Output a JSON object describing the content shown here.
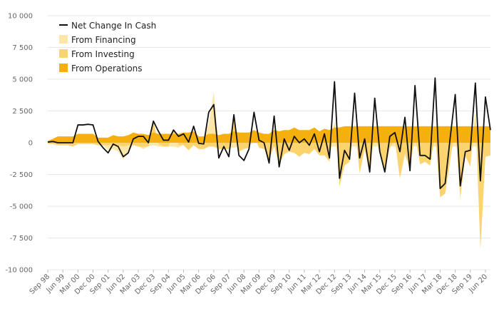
{
  "chart_data": {
    "type": "area",
    "title": "",
    "xlabel": "",
    "ylabel": "",
    "ylim": [
      -10000,
      10000
    ],
    "yticks": [
      10000,
      7500,
      5000,
      2500,
      0,
      -2500,
      -5000,
      -7500,
      -10000
    ],
    "ytick_labels": [
      "10 000",
      "7 500",
      "5 000",
      "2 500",
      "0",
      "-2 500",
      "-5 000",
      "-7 500",
      "-10 000"
    ],
    "grid": true,
    "legend_position": "top-left",
    "colors": {
      "net": "#111111",
      "financing": "#FCE6A8",
      "investing": "#FBD46F",
      "operations": "#F5AF0F",
      "grid": "#E8E8E8",
      "zero_line": "#CCCCCC"
    },
    "x": [
      "Sep 98",
      "Dec 98",
      "Mar 99",
      "Jun 99",
      "Sep 99",
      "Dec 99",
      "Mar 00",
      "Jun 00",
      "Sep 00",
      "Dec 00",
      "Mar 01",
      "Jun 01",
      "Sep 01",
      "Dec 01",
      "Mar 02",
      "Jun 02",
      "Sep 02",
      "Dec 02",
      "Mar 03",
      "Jun 03",
      "Sep 03",
      "Dec 03",
      "Mar 04",
      "Jun 04",
      "Sep 04",
      "Dec 04",
      "Mar 05",
      "Jun 05",
      "Sep 05",
      "Dec 05",
      "Mar 06",
      "Jun 06",
      "Sep 06",
      "Dec 06",
      "Mar 07",
      "Jun 07",
      "Sep 07",
      "Dec 07",
      "Mar 08",
      "Jun 08",
      "Sep 08",
      "Dec 08",
      "Mar 09",
      "Jun 09",
      "Sep 09",
      "Dec 09",
      "Mar 10",
      "Jun 10",
      "Sep 10",
      "Dec 10",
      "Mar 11",
      "Jun 11",
      "Sep 11",
      "Dec 11",
      "Mar 12",
      "Jun 12",
      "Sep 12",
      "Dec 12",
      "Mar 13",
      "Jun 13",
      "Sep 13",
      "Dec 13",
      "Mar 14",
      "Jun 14",
      "Sep 14",
      "Dec 14",
      "Mar 15",
      "Jun 15",
      "Sep 15",
      "Dec 15",
      "Mar 16",
      "Jun 16",
      "Sep 16",
      "Dec 16",
      "Mar 17",
      "Jun 17",
      "Sep 17",
      "Dec 17",
      "Mar 18",
      "Jun 18",
      "Sep 18",
      "Dec 18",
      "Mar 19",
      "Jun 19",
      "Sep 19",
      "Dec 19",
      "Mar 20",
      "Jun 20",
      "Sep 20"
    ],
    "x_tick_labels": [
      "Sep 98",
      "Jun 99",
      "Mar 00",
      "Dec 00",
      "Sep 01",
      "Jun 02",
      "Mar 03",
      "Dec 03",
      "Sep 04",
      "Jun 05",
      "Mar 06",
      "Dec 06",
      "Sep 07",
      "Jun 08",
      "Mar 09",
      "Dec 09",
      "Sep 10",
      "Jun 11",
      "Mar 12",
      "Dec 12",
      "Sep 13",
      "Jun 14",
      "Mar 15",
      "Dec 15",
      "Sep 16",
      "Jun 17",
      "Mar 18",
      "Dec 18",
      "Sep 19",
      "Jun 20"
    ],
    "series": [
      {
        "name": "Net Change In Cash",
        "kind": "line",
        "values": [
          50,
          100,
          0,
          0,
          0,
          0,
          1400,
          1400,
          1450,
          1400,
          100,
          -400,
          -800,
          -100,
          -300,
          -1100,
          -800,
          300,
          500,
          500,
          0,
          1700,
          900,
          200,
          200,
          1000,
          500,
          700,
          50,
          1300,
          -50,
          -100,
          2400,
          3000,
          -1200,
          -300,
          -1100,
          2200,
          -1000,
          -1400,
          -500,
          2400,
          200,
          0,
          -1600,
          2100,
          -1900,
          300,
          -600,
          500,
          0,
          300,
          -200,
          700,
          -700,
          700,
          -1200,
          4800,
          -2800,
          -600,
          -1300,
          3900,
          -1200,
          300,
          -2300,
          3500,
          -700,
          -2300,
          500,
          800,
          -700,
          2000,
          -2200,
          4500,
          -1000,
          -1000,
          -1300,
          5100,
          -3600,
          -3200,
          400,
          3800,
          -3400,
          -700,
          -600,
          4700,
          -3000,
          3600,
          1000
        ]
      },
      {
        "name": "From Financing",
        "kind": "area",
        "values": [
          0,
          0,
          0,
          0,
          0,
          0,
          -100,
          -100,
          -100,
          -100,
          -100,
          -200,
          -600,
          -500,
          -700,
          -1300,
          -800,
          -100,
          -300,
          -500,
          -300,
          -200,
          -300,
          -300,
          -300,
          -300,
          -400,
          -100,
          -200,
          300,
          200,
          300,
          1500,
          4000,
          -300,
          -200,
          -400,
          -400,
          -300,
          -300,
          -300,
          100,
          -100,
          -200,
          -700,
          -200,
          -800,
          -300,
          -200,
          -300,
          -200,
          -200,
          -200,
          -300,
          -300,
          -300,
          -300,
          -300,
          -300,
          -300,
          -300,
          -300,
          -300,
          -300,
          -300,
          -300,
          -300,
          -300,
          -300,
          -300,
          -300,
          -300,
          -300,
          -300,
          -300,
          -300,
          -300,
          -300,
          -300,
          -300,
          -300,
          -300,
          -300,
          -300,
          -300,
          -300,
          -300,
          -300,
          -300
        ]
      },
      {
        "name": "From Investing",
        "kind": "area",
        "values": [
          -100,
          -100,
          -200,
          -200,
          -200,
          -300,
          -100,
          -100,
          -100,
          -100,
          -200,
          -200,
          -200,
          -100,
          -200,
          -300,
          -200,
          -200,
          -300,
          -300,
          -300,
          1700,
          -100,
          -300,
          -300,
          1100,
          -200,
          -200,
          -600,
          -200,
          -500,
          -500,
          -300,
          -300,
          -500,
          -500,
          -500,
          2400,
          -700,
          -500,
          -400,
          600,
          -400,
          -500,
          -1300,
          -300,
          -1700,
          -900,
          -700,
          -800,
          -1100,
          -800,
          -900,
          -500,
          -1000,
          -1000,
          -1500,
          1700,
          -3400,
          -1800,
          -1500,
          1500,
          -2400,
          -500,
          -2400,
          1000,
          -900,
          -2200,
          -400,
          200,
          -2800,
          -900,
          -2100,
          600,
          -1700,
          -1500,
          -1800,
          700,
          -4300,
          -4000,
          -1400,
          1300,
          -4400,
          -1000,
          -1900,
          2300,
          -8400,
          -1100,
          -1000
        ]
      },
      {
        "name": "From Operations",
        "kind": "area",
        "values": [
          150,
          300,
          500,
          500,
          500,
          500,
          700,
          700,
          700,
          700,
          400,
          400,
          400,
          600,
          500,
          500,
          600,
          800,
          700,
          700,
          600,
          800,
          700,
          700,
          700,
          700,
          700,
          800,
          800,
          900,
          500,
          500,
          700,
          700,
          600,
          700,
          700,
          900,
          800,
          800,
          800,
          1000,
          800,
          700,
          700,
          1000,
          900,
          1000,
          1000,
          1200,
          1000,
          1000,
          1000,
          1200,
          900,
          1100,
          1000,
          1200,
          1200,
          1300,
          1300,
          1300,
          1300,
          1300,
          1300,
          1300,
          1300,
          1300,
          1300,
          1300,
          1300,
          1300,
          1300,
          1300,
          1300,
          1300,
          1300,
          1300,
          1300,
          1300,
          1300,
          1300,
          1300,
          1300,
          1300,
          1300,
          1300,
          1300,
          1300
        ]
      }
    ]
  }
}
